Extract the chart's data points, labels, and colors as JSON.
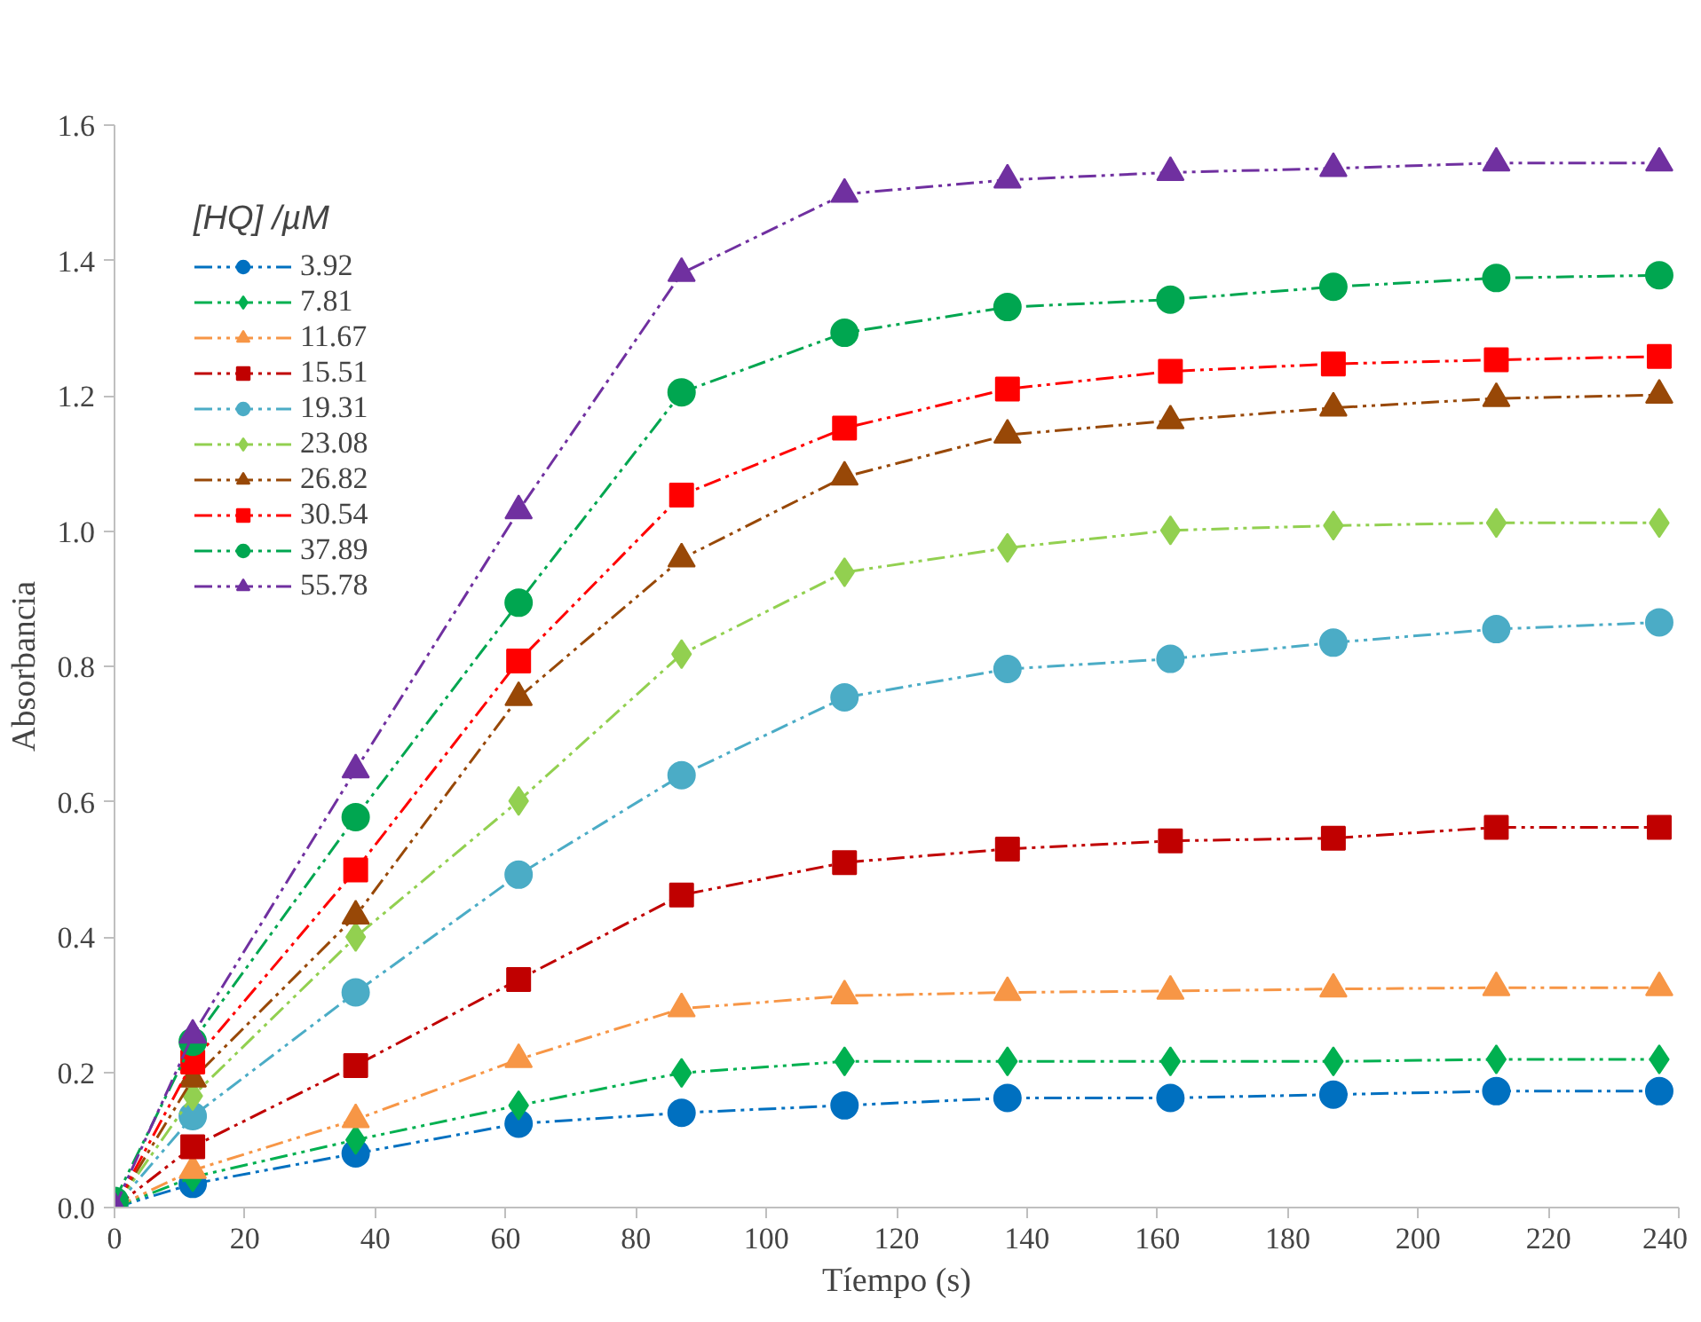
{
  "chart_data": {
    "type": "line",
    "xlabel": "Tíempo (s)",
    "ylabel": "Absorbancia",
    "legend_title": "[HQ] /µM",
    "legend": "top left",
    "grid": false,
    "line_style": "dashed",
    "x": [
      0,
      12,
      37,
      62,
      87,
      112,
      137,
      162,
      187,
      212,
      237
    ],
    "xlim": [
      0,
      240
    ],
    "xticks": [
      0,
      20,
      40,
      60,
      80,
      100,
      120,
      140,
      160,
      180,
      200,
      220,
      240
    ],
    "ylim": [
      0,
      1.6
    ],
    "yticks": [
      {
        "value": 0,
        "label": "0.0"
      },
      0.2,
      0.4,
      0.6,
      0.8,
      {
        "value": 1,
        "label": "1.0"
      },
      1.2,
      1.4,
      1.6
    ],
    "series": [
      {
        "name": "3.92",
        "color": "#0070c0",
        "marker": "circle",
        "values": [
          0,
          0.035,
          0.08,
          0.124,
          0.14,
          0.151,
          0.162,
          0.162,
          0.167,
          0.172,
          0.172
        ]
      },
      {
        "name": "7.81",
        "color": "#00b050",
        "marker": "diamond",
        "values": [
          0,
          0.045,
          0.1,
          0.151,
          0.199,
          0.216,
          0.216,
          0.216,
          0.216,
          0.219,
          0.219
        ]
      },
      {
        "name": "11.67",
        "color": "#f79646",
        "marker": "triangle",
        "values": [
          0,
          0.055,
          0.13,
          0.219,
          0.294,
          0.313,
          0.318,
          0.32,
          0.323,
          0.325,
          0.325
        ]
      },
      {
        "name": "15.51",
        "color": "#c00000",
        "marker": "square",
        "values": [
          0,
          0.09,
          0.21,
          0.337,
          0.462,
          0.51,
          0.53,
          0.542,
          0.546,
          0.562,
          0.562
        ]
      },
      {
        "name": "19.31",
        "color": "#4bacc6",
        "marker": "circle",
        "values": [
          0,
          0.135,
          0.318,
          0.492,
          0.639,
          0.754,
          0.796,
          0.811,
          0.835,
          0.855,
          0.865
        ]
      },
      {
        "name": "23.08",
        "color": "#92d050",
        "marker": "diamond",
        "values": [
          0,
          0.165,
          0.4,
          0.601,
          0.818,
          0.939,
          0.975,
          1.001,
          1.008,
          1.012,
          1.012
        ]
      },
      {
        "name": "26.82",
        "color": "#984807",
        "marker": "triangle",
        "values": [
          0,
          0.19,
          0.431,
          0.754,
          0.959,
          1.08,
          1.142,
          1.163,
          1.182,
          1.196,
          1.201
        ]
      },
      {
        "name": "30.54",
        "color": "#ff0000",
        "marker": "square",
        "values": [
          0,
          0.215,
          0.499,
          0.808,
          1.053,
          1.152,
          1.21,
          1.236,
          1.247,
          1.253,
          1.258
        ]
      },
      {
        "name": "37.89",
        "color": "#00a650",
        "marker": "circle",
        "values": [
          0.01,
          0.245,
          0.577,
          0.894,
          1.205,
          1.293,
          1.331,
          1.342,
          1.361,
          1.374,
          1.378
        ]
      },
      {
        "name": "55.78",
        "color": "#7030a0",
        "marker": "triangle",
        "values": [
          0,
          0.255,
          0.647,
          1.03,
          1.381,
          1.498,
          1.519,
          1.53,
          1.536,
          1.544,
          1.544
        ]
      }
    ]
  }
}
